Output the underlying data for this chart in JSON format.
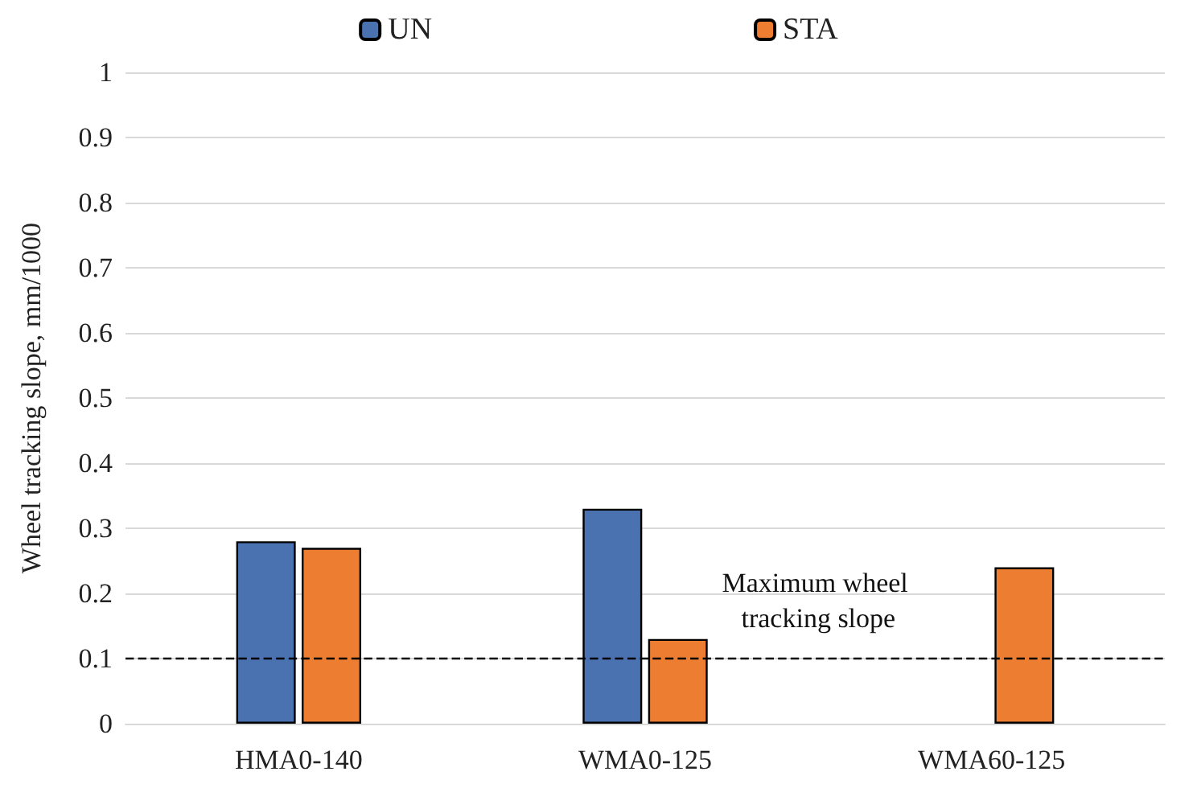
{
  "chart_data": {
    "type": "bar",
    "ylabel": "Wheel tracking slope, mm/1000",
    "categories": [
      "HMA0-140",
      "WMA0-125",
      "WMA60-125"
    ],
    "series": [
      {
        "name": "UN",
        "color": "#4a72b0",
        "values": [
          0.28,
          0.33,
          null
        ]
      },
      {
        "name": "STA",
        "color": "#ed7d31",
        "values": [
          0.27,
          0.13,
          0.24
        ]
      }
    ],
    "ylim": [
      0,
      1
    ],
    "yticks": [
      0,
      0.1,
      0.2,
      0.3,
      0.4,
      0.5,
      0.6,
      0.7,
      0.8,
      0.9,
      1
    ],
    "grid": "y",
    "legend": "top",
    "ref_lines": [
      {
        "axis": "y",
        "value": 0.1,
        "label": "Maximum wheel tracking slope",
        "color": "#000000",
        "line_style": "dashed"
      }
    ]
  }
}
